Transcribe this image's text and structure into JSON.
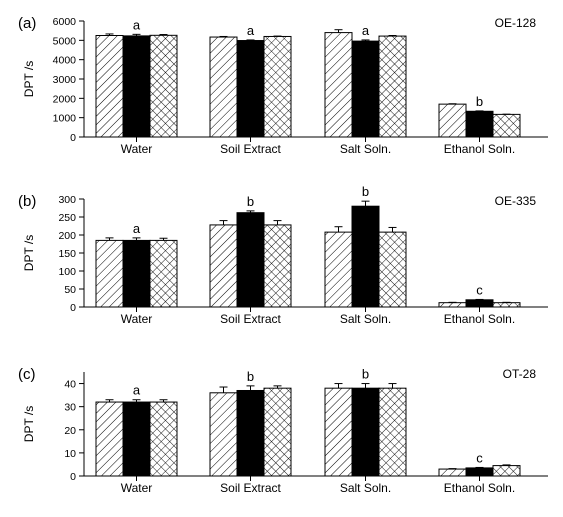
{
  "chart_data": [
    {
      "type": "bar",
      "panel_label": "(a)",
      "sample_label": "OE-128",
      "ylabel": "DPT /s",
      "ylim": [
        0,
        6000
      ],
      "yticks": [
        0,
        1000,
        2000,
        3000,
        4000,
        5000,
        6000
      ],
      "categories": [
        "Water",
        "Soil Extract",
        "Salt Soln.",
        "Ethanol Soln."
      ],
      "series": [
        {
          "pattern": "diagonal-hatch",
          "values": [
            5250,
            5170,
            5400,
            1700
          ],
          "errors": [
            80,
            30,
            150,
            20
          ]
        },
        {
          "pattern": "solid-black",
          "values": [
            5230,
            4990,
            4960,
            1330
          ],
          "errors": [
            80,
            30,
            60,
            20
          ]
        },
        {
          "pattern": "cross-hatch",
          "values": [
            5260,
            5200,
            5220,
            1170
          ],
          "errors": [
            40,
            20,
            30,
            10
          ]
        }
      ],
      "significance_letters": [
        "a",
        "a",
        "a",
        "b"
      ]
    },
    {
      "type": "bar",
      "panel_label": "(b)",
      "sample_label": "OE-335",
      "ylabel": "DPT /s",
      "ylim": [
        0,
        300
      ],
      "yticks": [
        0,
        50,
        100,
        150,
        200,
        250,
        300
      ],
      "categories": [
        "Water",
        "Soil Extract",
        "Salt Soln.",
        "Ethanol Soln."
      ],
      "series": [
        {
          "pattern": "diagonal-hatch",
          "values": [
            185,
            228,
            208,
            12
          ],
          "errors": [
            7,
            12,
            15,
            1
          ]
        },
        {
          "pattern": "solid-black",
          "values": [
            185,
            262,
            280,
            20
          ],
          "errors": [
            7,
            5,
            14,
            1
          ]
        },
        {
          "pattern": "cross-hatch",
          "values": [
            185,
            228,
            208,
            12
          ],
          "errors": [
            6,
            12,
            13,
            1
          ]
        }
      ],
      "significance_letters": [
        "a",
        "b",
        "b",
        "c"
      ]
    },
    {
      "type": "bar",
      "panel_label": "(c)",
      "sample_label": "OT-28",
      "ylabel": "DPT /s",
      "ylim": [
        0,
        45
      ],
      "yticks": [
        0,
        10,
        20,
        30,
        40
      ],
      "categories": [
        "Water",
        "Soil Extract",
        "Salt Soln.",
        "Ethanol Soln."
      ],
      "series": [
        {
          "pattern": "diagonal-hatch",
          "values": [
            32,
            36,
            38,
            3
          ],
          "errors": [
            1,
            2.5,
            2,
            0.2
          ]
        },
        {
          "pattern": "solid-black",
          "values": [
            32,
            37,
            38,
            3.5
          ],
          "errors": [
            1,
            2,
            2,
            0.2
          ]
        },
        {
          "pattern": "cross-hatch",
          "values": [
            32,
            38,
            38,
            4.5
          ],
          "errors": [
            1,
            1,
            2,
            0.3
          ]
        }
      ],
      "significance_letters": [
        "a",
        "b",
        "b",
        "c"
      ]
    }
  ]
}
